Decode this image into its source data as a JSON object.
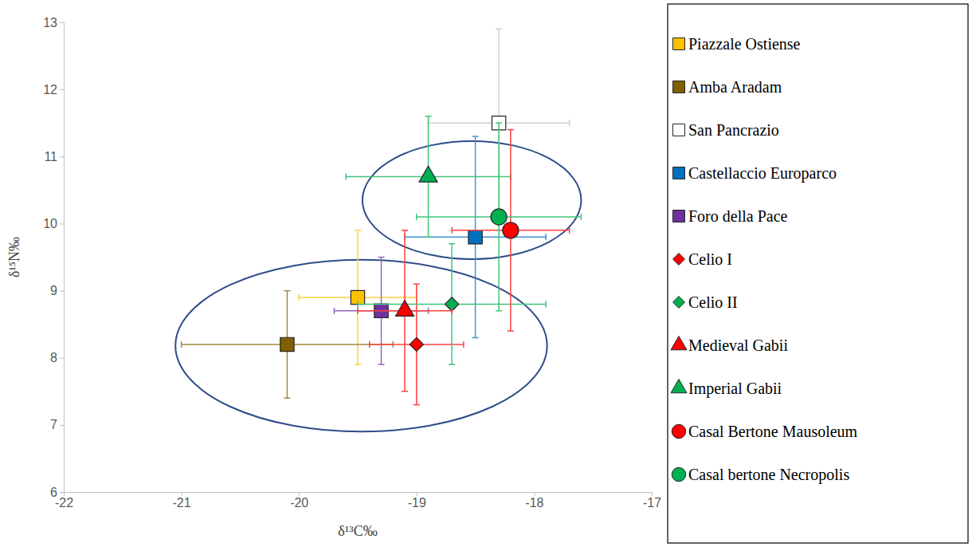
{
  "chart_data": {
    "type": "scatter",
    "x_label": "δ¹³C‰",
    "y_label": "δ¹⁵N‰",
    "xlim": [
      -22,
      -17
    ],
    "ylim": [
      6,
      13
    ],
    "xticks": [
      -22,
      -21,
      -20,
      -19,
      -18,
      -17
    ],
    "yticks": [
      6,
      7,
      8,
      9,
      10,
      11,
      12,
      13
    ],
    "grid": false,
    "legend": "right",
    "series": [
      {
        "name": "Piazzale Ostiense",
        "color": "#ffc000",
        "marker": "square",
        "x": [
          -19.5
        ],
        "values": [
          8.9
        ],
        "x_error": [
          0.5
        ],
        "y_error": [
          1.0
        ]
      },
      {
        "name": "Amba Aradam",
        "color": "#7f6000",
        "marker": "square",
        "x": [
          -20.1
        ],
        "values": [
          8.2
        ],
        "x_error": [
          0.9
        ],
        "y_error": [
          0.8
        ]
      },
      {
        "name": "San Pancrazio",
        "color": "#ffffff",
        "marker": "square",
        "x": [
          -18.3
        ],
        "values": [
          11.5
        ],
        "x_error": [
          0.6
        ],
        "y_error": [
          1.4
        ]
      },
      {
        "name": "Castellaccio Europarco",
        "color": "#0070c0",
        "marker": "square",
        "x": [
          -18.5
        ],
        "values": [
          9.8
        ],
        "x_error": [
          0.6
        ],
        "y_error": [
          1.5
        ]
      },
      {
        "name": "Foro della Pace",
        "color": "#7030a0",
        "marker": "square",
        "x": [
          -19.3
        ],
        "values": [
          8.7
        ],
        "x_error": [
          0.4
        ],
        "y_error": [
          0.8
        ]
      },
      {
        "name": "Celio I",
        "color": "#ff0000",
        "marker": "diamond",
        "x": [
          -19.0
        ],
        "values": [
          8.2
        ],
        "x_error": [
          0.4
        ],
        "y_error": [
          0.9
        ]
      },
      {
        "name": "Celio II",
        "color": "#00b050",
        "marker": "diamond",
        "x": [
          -18.7
        ],
        "values": [
          8.8
        ],
        "x_error": [
          0.8
        ],
        "y_error": [
          0.9
        ]
      },
      {
        "name": "Medieval Gabii",
        "color": "#ff0000",
        "marker": "triangle",
        "x": [
          -19.1
        ],
        "values": [
          8.7
        ],
        "x_error": [
          0.4
        ],
        "y_error": [
          1.2
        ]
      },
      {
        "name": "Imperial Gabii",
        "color": "#00b050",
        "marker": "triangle",
        "x": [
          -18.9
        ],
        "values": [
          10.7
        ],
        "x_error": [
          0.7
        ],
        "y_error": [
          0.9
        ]
      },
      {
        "name": "Casal Bertone Mausoleum",
        "color": "#ff0000",
        "marker": "circle",
        "x": [
          -18.2
        ],
        "values": [
          9.9
        ],
        "x_error": [
          0.5
        ],
        "y_error": [
          1.5
        ]
      },
      {
        "name": "Casal bertone Necropolis",
        "color": "#00b050",
        "marker": "circle",
        "x": [
          -18.3
        ],
        "values": [
          10.1
        ],
        "x_error": [
          0.7
        ],
        "y_error": [
          1.4
        ]
      }
    ],
    "ellipses": [
      {
        "cx": -18.53,
        "cy": 10.35,
        "rx": 0.93,
        "ry": 0.88
      },
      {
        "cx": -19.47,
        "cy": 8.18,
        "rx": 1.58,
        "ry": 1.28
      }
    ]
  }
}
